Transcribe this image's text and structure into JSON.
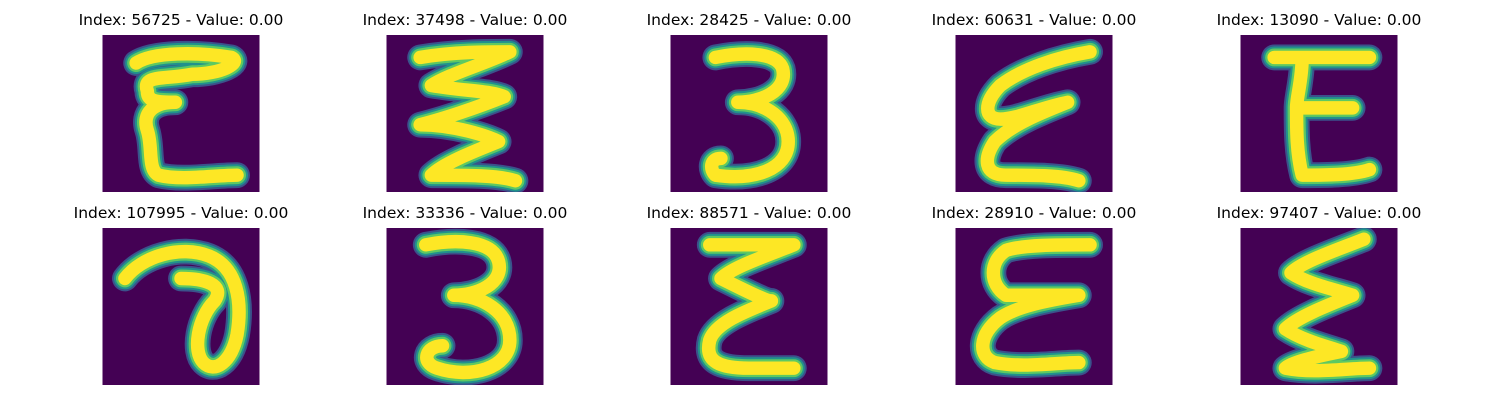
{
  "colors": {
    "background": "#440154",
    "stroke_core": "#fde725",
    "stroke_edge_1": "#5ec962",
    "stroke_edge_2": "#21918c",
    "stroke_edge_3": "#3b528b"
  },
  "panels": [
    {
      "title": "Index: 56725 - Value: 0.00",
      "glyph": "E-curly"
    },
    {
      "title": "Index: 37498 - Value: 0.00",
      "glyph": "zigzag"
    },
    {
      "title": "Index: 28425 - Value: 0.00",
      "glyph": "3"
    },
    {
      "title": "Index: 60631 - Value: 0.00",
      "glyph": "E-slanted"
    },
    {
      "title": "Index: 13090 - Value: 0.00",
      "glyph": "E"
    },
    {
      "title": "Index: 107995 - Value: 0.00",
      "glyph": "loop"
    },
    {
      "title": "Index: 33336 - Value: 0.00",
      "glyph": "3-curly"
    },
    {
      "title": "Index: 88571 - Value: 0.00",
      "glyph": "E-zigzag"
    },
    {
      "title": "Index: 28910 - Value: 0.00",
      "glyph": "E-wide"
    },
    {
      "title": "Index: 97407 - Value: 0.00",
      "glyph": "zigzag-2"
    }
  ]
}
